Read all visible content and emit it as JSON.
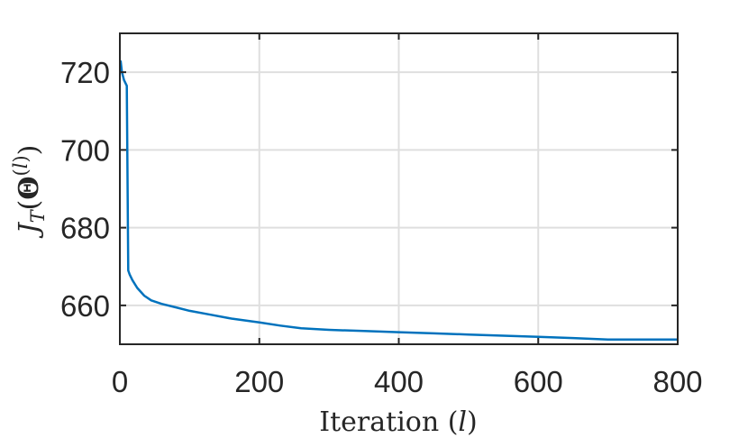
{
  "chart_data": {
    "type": "line",
    "xlabel": "Iteration (l)",
    "ylabel": "J_T(Θ^(l))",
    "xlim": [
      0,
      800
    ],
    "ylim": [
      650,
      730
    ],
    "xticks": [
      "0",
      "200",
      "400",
      "600",
      "800"
    ],
    "yticks": [
      "660",
      "680",
      "700",
      "720"
    ],
    "grid": true,
    "color": "#0072BD",
    "x": [
      1,
      3,
      6,
      10,
      12,
      14,
      18,
      25,
      35,
      45,
      60,
      80,
      100,
      130,
      160,
      200,
      230,
      260,
      300,
      350,
      400,
      450,
      500,
      550,
      600,
      650,
      700,
      750,
      800
    ],
    "y": [
      723,
      720,
      718,
      716.5,
      669,
      668,
      666.5,
      664.5,
      662.5,
      661.3,
      660.4,
      659.5,
      658.6,
      657.6,
      656.6,
      655.6,
      654.8,
      654.1,
      653.7,
      653.4,
      653.1,
      652.8,
      652.5,
      652.2,
      651.9,
      651.6,
      651.2,
      651.2,
      651.2
    ]
  }
}
